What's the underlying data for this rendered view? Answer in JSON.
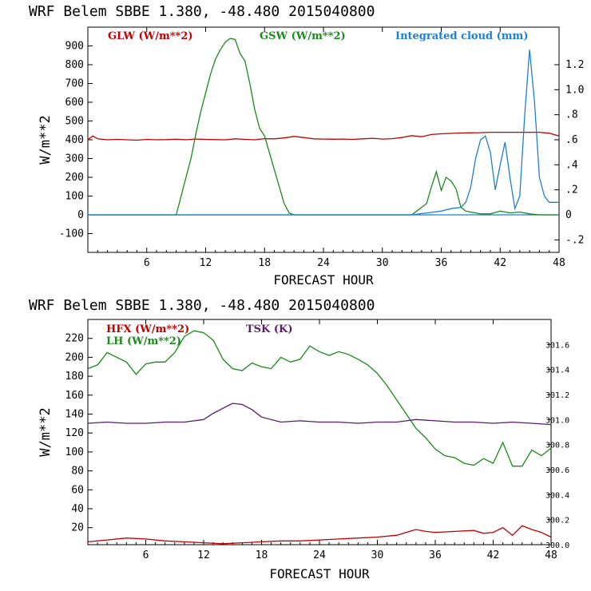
{
  "chart_data": [
    {
      "type": "line",
      "title": "WRF   Belem SBBE      1.380, -48.480  2015040800",
      "xlabel": "FORECAST HOUR",
      "ylabel": "W/m**2",
      "xlim": [
        0,
        48
      ],
      "xticks": [
        "6",
        "12",
        "18",
        "24",
        "30",
        "36",
        "42",
        "48"
      ],
      "ylim": [
        -200,
        1000
      ],
      "yticks": [
        "-100",
        "0",
        "100",
        "200",
        "300",
        "400",
        "500",
        "600",
        "700",
        "800",
        "900"
      ],
      "y2lim": [
        -0.3,
        1.5
      ],
      "y2ticks": [
        "-.2",
        "0",
        ".2",
        ".4",
        ".6",
        ".8",
        "1.0",
        "1.2"
      ],
      "series": [
        {
          "name": "GLW (W/m**2)",
          "color": "#c00000",
          "axis": "left",
          "x": [
            0,
            0.5,
            1,
            2,
            3,
            4,
            5,
            6,
            7,
            8,
            9,
            10,
            11,
            12,
            13,
            14,
            15,
            16,
            17,
            18,
            19,
            20,
            21,
            22,
            23,
            24,
            25,
            26,
            27,
            28,
            29,
            30,
            31,
            32,
            33,
            34,
            35,
            36,
            37,
            38,
            39,
            40,
            41,
            42,
            43,
            44,
            45,
            46,
            47,
            48
          ],
          "values": [
            400,
            420,
            405,
            400,
            402,
            400,
            398,
            402,
            400,
            401,
            403,
            400,
            404,
            402,
            401,
            400,
            405,
            402,
            400,
            406,
            405,
            410,
            418,
            412,
            405,
            404,
            403,
            404,
            402,
            405,
            408,
            404,
            406,
            412,
            422,
            416,
            428,
            432,
            434,
            436,
            437,
            438,
            440,
            440,
            440,
            440,
            440,
            440,
            435,
            420
          ]
        },
        {
          "name": "GSW (W/m**2)",
          "color": "#1a8a1a",
          "axis": "left",
          "x": [
            0,
            9,
            9.5,
            10,
            10.5,
            11,
            11.5,
            12,
            12.5,
            13,
            13.5,
            14,
            14.5,
            15,
            15.5,
            16,
            16.5,
            17,
            17.5,
            18,
            18.5,
            19,
            19.5,
            20,
            20.5,
            21,
            21.5,
            22,
            23,
            33,
            33.5,
            34,
            34.5,
            35,
            35.5,
            36,
            36.5,
            37,
            37.5,
            38,
            38.5,
            39,
            39.5,
            40,
            41,
            42,
            43,
            44,
            45,
            46,
            47,
            48
          ],
          "values": [
            0,
            0,
            100,
            200,
            300,
            430,
            550,
            650,
            750,
            830,
            880,
            920,
            940,
            935,
            860,
            820,
            700,
            560,
            460,
            420,
            330,
            240,
            150,
            60,
            10,
            0,
            0,
            0,
            0,
            0,
            20,
            40,
            60,
            150,
            230,
            130,
            200,
            180,
            140,
            40,
            20,
            15,
            10,
            5,
            5,
            20,
            10,
            15,
            5,
            0,
            0,
            0
          ]
        },
        {
          "name": "Integrated cloud (mm)",
          "color": "#1e7fd0",
          "axis": "right",
          "x": [
            0,
            33,
            34,
            35,
            36,
            36.5,
            37,
            38,
            38.5,
            39,
            39.5,
            40,
            40.5,
            41,
            41.5,
            42,
            42.5,
            43,
            43.5,
            44,
            44.5,
            45,
            45.5,
            46,
            46.5,
            47,
            48
          ],
          "values": [
            0,
            0,
            0.01,
            0.02,
            0.03,
            0.04,
            0.05,
            0.06,
            0.1,
            0.22,
            0.45,
            0.6,
            0.63,
            0.5,
            0.2,
            0.4,
            0.58,
            0.3,
            0.05,
            0.15,
            0.8,
            1.32,
            0.9,
            0.3,
            0.15,
            0.1,
            0.1
          ]
        }
      ],
      "zero_line_color": "#1e7fd0"
    },
    {
      "type": "line",
      "title": "WRF   Belem SBBE      1.380, -48.480  2015040800",
      "xlabel": "FORECAST HOUR",
      "ylabel": "W/m**2",
      "xlim": [
        0,
        48
      ],
      "xticks": [
        "6",
        "12",
        "18",
        "24",
        "30",
        "36",
        "42",
        "48"
      ],
      "ylim": [
        2,
        240
      ],
      "yticks": [
        "20",
        "40",
        "60",
        "80",
        "100",
        "120",
        "140",
        "160",
        "180",
        "200",
        "220"
      ],
      "y2lim": [
        300.0,
        301.8
      ],
      "y2ticks": [
        "300.0",
        "300.2",
        "300.4",
        "300.6",
        "300.8",
        "301.0",
        "301.2",
        "301.4",
        "301.6"
      ],
      "series": [
        {
          "name": "HFX (W/m**2)",
          "color": "#c00000",
          "axis": "left",
          "x": [
            0,
            2,
            4,
            6,
            8,
            10,
            12,
            14,
            16,
            18,
            20,
            22,
            24,
            26,
            28,
            30,
            32,
            34,
            35,
            36,
            38,
            40,
            41,
            42,
            43,
            44,
            45,
            46,
            47,
            48
          ],
          "values": [
            5,
            7,
            9,
            8,
            6,
            5,
            4,
            3,
            4,
            5,
            6,
            6,
            7,
            8,
            9,
            10,
            12,
            18,
            16,
            15,
            16,
            17,
            14,
            15,
            20,
            12,
            22,
            18,
            15,
            10
          ]
        },
        {
          "name": "LH (W/m**2)",
          "color": "#1a8a1a",
          "axis": "left",
          "x": [
            0,
            1,
            2,
            3,
            4,
            5,
            6,
            7,
            8,
            9,
            10,
            11,
            12,
            13,
            14,
            15,
            16,
            17,
            18,
            19,
            20,
            21,
            22,
            23,
            24,
            25,
            26,
            27,
            28,
            29,
            30,
            31,
            32,
            33,
            34,
            35,
            36,
            37,
            38,
            39,
            40,
            41,
            42,
            43,
            44,
            45,
            46,
            47,
            48
          ],
          "values": [
            188,
            192,
            205,
            200,
            195,
            182,
            193,
            195,
            195,
            205,
            222,
            228,
            226,
            218,
            198,
            188,
            186,
            194,
            190,
            188,
            200,
            195,
            198,
            212,
            206,
            202,
            206,
            203,
            198,
            192,
            183,
            170,
            155,
            140,
            125,
            115,
            103,
            96,
            94,
            88,
            86,
            93,
            88,
            110,
            85,
            85,
            102,
            96,
            104
          ]
        },
        {
          "name": "TSK (K)",
          "color": "#5a1a6a",
          "axis": "right",
          "x": [
            0,
            2,
            4,
            6,
            8,
            10,
            12,
            13,
            14,
            15,
            16,
            17,
            18,
            20,
            22,
            24,
            26,
            28,
            30,
            32,
            34,
            36,
            38,
            40,
            42,
            44,
            46,
            48
          ],
          "values": [
            300.97,
            300.98,
            300.97,
            300.97,
            300.98,
            300.98,
            301.0,
            301.05,
            301.09,
            301.13,
            301.12,
            301.08,
            301.02,
            300.98,
            300.99,
            300.98,
            300.98,
            300.97,
            300.98,
            300.98,
            301.0,
            300.99,
            300.98,
            300.98,
            300.97,
            300.98,
            300.97,
            300.96
          ]
        }
      ]
    }
  ]
}
